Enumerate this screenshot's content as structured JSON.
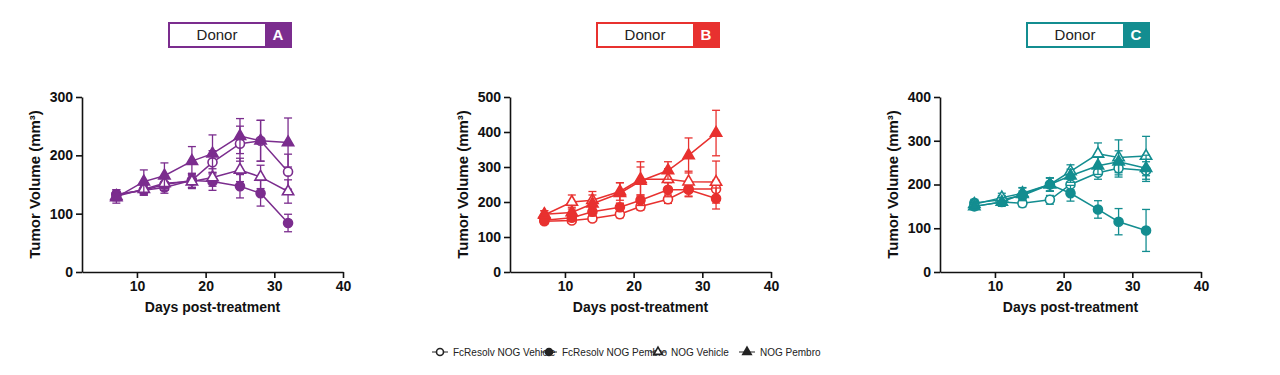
{
  "chart_data": [
    {
      "type": "line",
      "title": "Donor",
      "subtitle": "A",
      "color": "#7b2d8e",
      "x_label": "Days post-treatment",
      "y_label": "Tumor Volume (mm³)",
      "xlim": [
        2,
        40
      ],
      "xticks": [
        10,
        20,
        30,
        40
      ],
      "ylim": [
        0,
        300
      ],
      "yticks": [
        0,
        100,
        200,
        300
      ],
      "legend": "bottom",
      "x": [
        7,
        11,
        14,
        18,
        21,
        25,
        28,
        32
      ],
      "series": [
        {
          "name": "FcResolv NOG Vehicle",
          "marker": "circle-open",
          "values": [
            133,
            140,
            145,
            157,
            188,
            220,
            225,
            172
          ],
          "errors": [
            8,
            8,
            10,
            12,
            20,
            30,
            35,
            30
          ]
        },
        {
          "name": "FcResolv NOG Pembro",
          "marker": "circle",
          "values": [
            133,
            140,
            150,
            157,
            155,
            147,
            135,
            84
          ],
          "errors": [
            8,
            8,
            10,
            12,
            15,
            20,
            22,
            15
          ]
        },
        {
          "name": "NOG Vehicle",
          "marker": "triangle-open",
          "values": [
            130,
            142,
            152,
            155,
            162,
            175,
            163,
            138
          ],
          "errors": [
            8,
            10,
            12,
            12,
            15,
            20,
            20,
            20
          ]
        },
        {
          "name": "NOG Pembro",
          "marker": "triangle",
          "values": [
            128,
            155,
            165,
            190,
            203,
            233,
            225,
            222
          ],
          "errors": [
            10,
            20,
            22,
            25,
            32,
            30,
            35,
            42
          ]
        }
      ]
    },
    {
      "type": "line",
      "title": "Donor",
      "subtitle": "B",
      "color": "#e8312f",
      "x_label": "Days post-treatment",
      "y_label": "Tumor Volume (mm³)",
      "xlim": [
        2,
        40
      ],
      "xticks": [
        10,
        20,
        30,
        40
      ],
      "ylim": [
        0,
        500
      ],
      "yticks": [
        0,
        100,
        200,
        300,
        400,
        500
      ],
      "x": [
        7,
        11,
        14,
        18,
        21,
        25,
        28,
        32
      ],
      "series": [
        {
          "marker": "circle-open",
          "values": [
            145,
            147,
            153,
            165,
            187,
            208,
            237,
            237
          ],
          "errors": [
            8,
            8,
            8,
            10,
            10,
            12,
            20,
            25
          ]
        },
        {
          "marker": "circle",
          "values": [
            148,
            155,
            172,
            185,
            205,
            235,
            235,
            210
          ],
          "errors": [
            8,
            10,
            12,
            12,
            15,
            20,
            20,
            30
          ]
        },
        {
          "marker": "triangle-open",
          "values": [
            163,
            200,
            205,
            230,
            265,
            265,
            258,
            257
          ],
          "errors": [
            12,
            20,
            25,
            25,
            50,
            30,
            30,
            60
          ]
        },
        {
          "marker": "triangle",
          "values": [
            165,
            170,
            195,
            225,
            260,
            290,
            333,
            397
          ],
          "errors": [
            10,
            15,
            25,
            30,
            40,
            25,
            50,
            65
          ]
        }
      ]
    },
    {
      "type": "line",
      "title": "Donor",
      "subtitle": "C",
      "color": "#138d90",
      "x_label": "Days post-treatment",
      "y_label": "Tumor Volume (mm³)",
      "xlim": [
        2,
        40
      ],
      "xticks": [
        10,
        20,
        30,
        40
      ],
      "ylim": [
        0,
        400
      ],
      "yticks": [
        0,
        100,
        200,
        300,
        400
      ],
      "x": [
        7,
        11,
        14,
        18,
        21,
        25,
        28,
        32
      ],
      "series": [
        {
          "marker": "circle-open",
          "values": [
            150,
            160,
            157,
            165,
            200,
            227,
            237,
            232
          ],
          "errors": [
            6,
            6,
            8,
            10,
            12,
            15,
            20,
            20
          ]
        },
        {
          "marker": "circle",
          "values": [
            158,
            165,
            175,
            200,
            180,
            143,
            115,
            95
          ],
          "errors": [
            8,
            10,
            10,
            15,
            18,
            20,
            30,
            48
          ]
        },
        {
          "marker": "triangle-open",
          "values": [
            155,
            170,
            180,
            200,
            230,
            270,
            262,
            265
          ],
          "errors": [
            8,
            10,
            12,
            15,
            15,
            25,
            40,
            45
          ]
        },
        {
          "marker": "triangle",
          "values": [
            150,
            160,
            178,
            200,
            220,
            243,
            252,
            237
          ],
          "errors": [
            8,
            10,
            15,
            15,
            15,
            20,
            25,
            30
          ]
        }
      ]
    }
  ]
}
